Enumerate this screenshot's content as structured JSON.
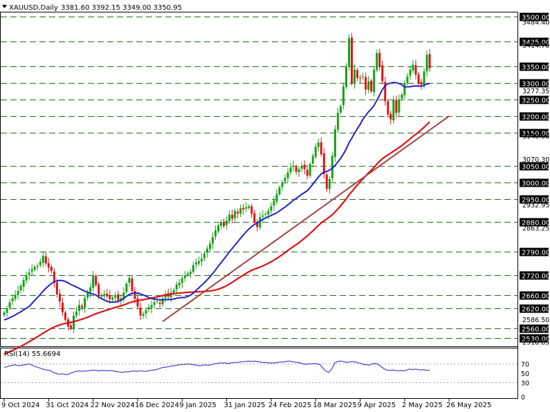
{
  "header": {
    "symbol": "XAUUSD,Daily",
    "ohlc": "3381.60 3392.15 3349.00 3350.95"
  },
  "rsi": {
    "label": "RSI(14) 55.6694",
    "levels": [
      "70",
      "50",
      "30",
      "0"
    ],
    "values": [
      62,
      64,
      66,
      67,
      68,
      66,
      67,
      68,
      69,
      70,
      66,
      64,
      62,
      60,
      58,
      57,
      56,
      52,
      50,
      48,
      49,
      48,
      47,
      50,
      52,
      54,
      55,
      54,
      55,
      55,
      56,
      57,
      56,
      55,
      56,
      56,
      55,
      56,
      55,
      54,
      53,
      52,
      53,
      53,
      54,
      55,
      54,
      55,
      55,
      54,
      55,
      56,
      57,
      58,
      60,
      62,
      63,
      64,
      65,
      66,
      67,
      68,
      69,
      69,
      70,
      69,
      68,
      67,
      66,
      67,
      68,
      67,
      68,
      70,
      71,
      72,
      72,
      72,
      71,
      72,
      73,
      73,
      74,
      75,
      75,
      76,
      75,
      76,
      75,
      74,
      73,
      73,
      72,
      72,
      72,
      73,
      74,
      74,
      75,
      76,
      75,
      74,
      73,
      72,
      70,
      69,
      70,
      70,
      71,
      70,
      68,
      60,
      54,
      52,
      60,
      72,
      75,
      76,
      75,
      73,
      74,
      75,
      74,
      73,
      71,
      69,
      68,
      67,
      70,
      71,
      69,
      65,
      60,
      57,
      56,
      57,
      56,
      55,
      56,
      55,
      57,
      59,
      58,
      59,
      58,
      57,
      58,
      56,
      57
    ]
  },
  "levels": [
    {
      "price": 3500,
      "label": "3500.00",
      "boxed": true
    },
    {
      "price": 3425,
      "label": "3425.00",
      "boxed": true
    },
    {
      "price": 3350,
      "label": "3350.00",
      "boxed": true
    },
    {
      "price": 3300,
      "label": "3300.00",
      "boxed": true
    },
    {
      "price": 3250,
      "label": "3250.00",
      "boxed": true
    },
    {
      "price": 3200,
      "label": "3200.00",
      "boxed": true
    },
    {
      "price": 3150,
      "label": "3150.00",
      "boxed": true
    },
    {
      "price": 3050,
      "label": "3050.00",
      "boxed": true
    },
    {
      "price": 3000,
      "label": "3000.00",
      "boxed": true
    },
    {
      "price": 2950,
      "label": "2950.00",
      "boxed": true
    },
    {
      "price": 2880,
      "label": "2880.00",
      "boxed": true
    },
    {
      "price": 2790,
      "label": "2790.00",
      "boxed": true
    },
    {
      "price": 2720,
      "label": "2720.00",
      "boxed": true
    },
    {
      "price": 2660,
      "label": "2660.00",
      "boxed": true
    },
    {
      "price": 2620,
      "label": "2620.00",
      "boxed": true
    },
    {
      "price": 2560,
      "label": "2560.00",
      "boxed": true
    },
    {
      "price": 2530,
      "label": "2530.00",
      "boxed": true
    }
  ],
  "price_ticks": [
    "3484.40",
    "3414.70",
    "3277.35",
    "3140.00",
    "3070.30",
    "2932.95",
    "2863.25",
    "2586.50",
    "2518.85"
  ],
  "price_tick_values": [
    3484.4,
    3414.7,
    3277.35,
    3140.0,
    3070.3,
    2932.95,
    2863.25,
    2586.5,
    2518.85
  ],
  "date_ticks": [
    "9 Oct 2024",
    "31 Oct 2024",
    "22 Nov 2024",
    "16 Dec 2024",
    "9 Jan 2025",
    "31 Jan 2025",
    "24 Feb 2025",
    "18 Mar 2025",
    "9 Apr 2025",
    "2 May 2025",
    "26 May 2025"
  ],
  "date_tick_index": [
    0,
    16,
    32,
    48,
    64,
    80,
    96,
    112,
    128,
    144,
    160
  ],
  "colors": {
    "bull": "#14a014",
    "bear": "#dc1414",
    "ma_fast": "#1e22c8",
    "ma_slow": "#e01010",
    "trendline": "#a0423c",
    "rsi_line": "#2020c8",
    "level_line": "#1e6e1e"
  },
  "chart_data": {
    "type": "candlestick",
    "title": "XAUUSD,Daily",
    "ylim": [
      2505,
      3515
    ],
    "x_start": "9 Oct 2024",
    "close": [
      2607,
      2620,
      2638,
      2650,
      2660,
      2672,
      2688,
      2705,
      2720,
      2728,
      2738,
      2745,
      2748,
      2760,
      2778,
      2755,
      2742,
      2733,
      2698,
      2662,
      2640,
      2608,
      2585,
      2565,
      2560,
      2598,
      2610,
      2630,
      2622,
      2651,
      2665,
      2683,
      2718,
      2690,
      2660,
      2657,
      2663,
      2656,
      2648,
      2652,
      2660,
      2645,
      2650,
      2668,
      2694,
      2712,
      2672,
      2648,
      2625,
      2598,
      2603,
      2614,
      2623,
      2630,
      2638,
      2640,
      2633,
      2650,
      2662,
      2655,
      2667,
      2675,
      2692,
      2697,
      2710,
      2718,
      2725,
      2730,
      2750,
      2758,
      2762,
      2770,
      2785,
      2800,
      2815,
      2835,
      2855,
      2870,
      2880,
      2868,
      2885,
      2902,
      2890,
      2914,
      2906,
      2922,
      2918,
      2925,
      2928,
      2905,
      2880,
      2865,
      2895,
      2900,
      2905,
      2914,
      2928,
      2945,
      2965,
      2985,
      3000,
      3014,
      3030,
      3045,
      3050,
      3032,
      3040,
      3050,
      3040,
      3020,
      3055,
      3080,
      3108,
      3120,
      3085,
      3025,
      2980,
      3010,
      3080,
      3160,
      3210,
      3230,
      3290,
      3350,
      3435,
      3300,
      3340,
      3315,
      3315,
      3320,
      3280,
      3305,
      3275,
      3340,
      3390,
      3350,
      3305,
      3245,
      3205,
      3190,
      3250,
      3210,
      3250,
      3265,
      3300,
      3320,
      3340,
      3355,
      3325,
      3300,
      3295,
      3335,
      3385,
      3345
    ]
  }
}
